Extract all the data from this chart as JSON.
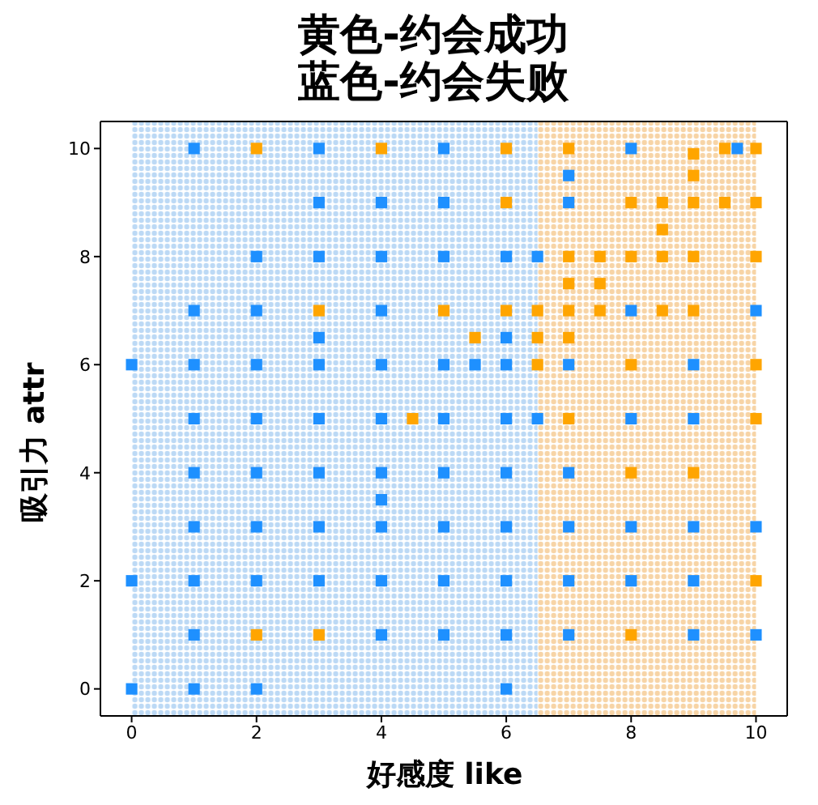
{
  "chart_data": {
    "type": "scatter",
    "title": "黄色-约会成功",
    "subtitle": "蓝色-约会失败",
    "xlabel": "好感度 like",
    "ylabel": "吸引力 attr",
    "xlim": [
      -0.5,
      10.5
    ],
    "ylim": [
      -0.5,
      10.5
    ],
    "xticks": [
      0,
      2,
      4,
      6,
      8,
      10
    ],
    "yticks": [
      0,
      2,
      4,
      6,
      8,
      10
    ],
    "marker": "square",
    "grid": false,
    "bands": [
      {
        "axis": "x",
        "from": 0,
        "to": 6.5,
        "color": "#bcd9f5"
      },
      {
        "axis": "x",
        "from": 6.5,
        "to": 10,
        "color": "#f7d4a6"
      }
    ],
    "series": [
      {
        "color": "#1e90ff",
        "x": [
          1,
          3,
          5,
          8,
          9.7,
          7,
          3,
          4,
          5,
          7,
          2,
          3,
          4,
          5,
          6,
          6.5,
          1,
          2,
          4,
          8,
          10,
          3,
          6,
          0,
          1,
          2,
          3,
          4,
          5,
          5.5,
          6,
          7,
          9,
          1,
          2,
          3,
          4,
          5,
          6,
          6.5,
          8,
          9,
          1,
          2,
          3,
          4,
          5,
          6,
          7,
          4,
          1,
          2,
          3,
          4,
          5,
          6,
          7,
          8,
          9,
          10,
          0,
          1,
          2,
          3,
          4,
          5,
          6,
          7,
          8,
          9,
          1,
          4,
          5,
          6,
          7,
          9,
          10,
          0,
          1,
          2,
          6
        ],
        "values": [
          10,
          10,
          10,
          10,
          10,
          9.5,
          9,
          9,
          9,
          9,
          8,
          8,
          8,
          8,
          8,
          8,
          7,
          7,
          7,
          7,
          7,
          6.5,
          6.5,
          6,
          6,
          6,
          6,
          6,
          6,
          6,
          6,
          6,
          6,
          5,
          5,
          5,
          5,
          5,
          5,
          5,
          5,
          5,
          4,
          4,
          4,
          4,
          4,
          4,
          4,
          3.5,
          3,
          3,
          3,
          3,
          3,
          3,
          3,
          3,
          3,
          3,
          2,
          2,
          2,
          2,
          2,
          2,
          2,
          2,
          2,
          2,
          1,
          1,
          1,
          1,
          1,
          1,
          1,
          0,
          0,
          0,
          0
        ]
      },
      {
        "color": "#ffa500",
        "x": [
          2,
          4,
          6,
          7,
          9,
          9.5,
          10,
          9,
          9,
          6,
          8,
          8.5,
          9,
          9.5,
          10,
          8.5,
          7,
          7.5,
          8,
          8.5,
          9,
          10,
          7,
          7.5,
          3,
          5,
          6,
          6.5,
          7,
          7.5,
          8.5,
          9,
          5.5,
          6.5,
          7,
          6.5,
          8,
          10,
          4.5,
          7,
          10,
          8,
          9,
          10,
          2,
          3,
          8
        ],
        "values": [
          10,
          10,
          10,
          10,
          null,
          10,
          10,
          9.9,
          9.5,
          9,
          9,
          9,
          9,
          9,
          9,
          8.5,
          8,
          8,
          8,
          8,
          8,
          8,
          7.5,
          7.5,
          7,
          7,
          7,
          7,
          7,
          7,
          7,
          7,
          6.5,
          6.5,
          6.5,
          6,
          6,
          6,
          5,
          5,
          5,
          4,
          4,
          2,
          1,
          1,
          1
        ]
      }
    ]
  }
}
